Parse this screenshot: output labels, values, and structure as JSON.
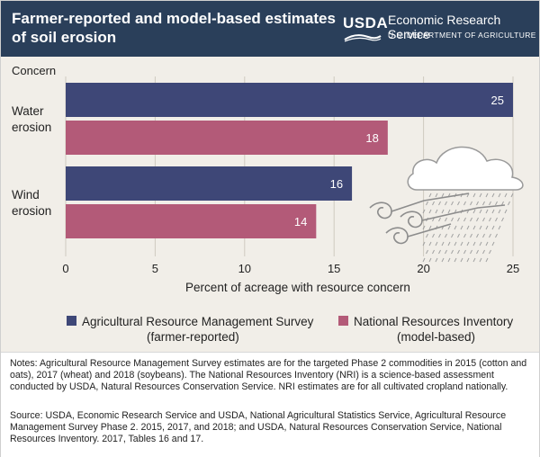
{
  "header": {
    "title": "Farmer-reported and model-based estimates of soil erosion",
    "logo_text": "USDA",
    "agency": "Economic Research Service",
    "department": "U.S. DEPARTMENT OF AGRICULTURE"
  },
  "chart_data": {
    "type": "bar",
    "orientation": "horizontal",
    "y_title": "Concern",
    "categories": [
      "Water erosion",
      "Wind erosion"
    ],
    "series": [
      {
        "name": "Agricultural Resource Management Survey (farmer-reported)",
        "values": [
          25,
          16
        ],
        "color": "#3e4777"
      },
      {
        "name": "National Resources Inventory (model-based)",
        "values": [
          18,
          14
        ],
        "color": "#b35a78"
      }
    ],
    "data_labels": [
      "25",
      "18",
      "16",
      "14"
    ],
    "xlabel": "Percent of acreage with resource concern",
    "xlim": [
      0,
      25
    ],
    "xticks": [
      "0",
      "5",
      "10",
      "15",
      "20",
      "25"
    ],
    "grid": true,
    "legend_position": "bottom"
  },
  "legend": {
    "arms_line1": "Agricultural Resource Management Survey",
    "arms_line2": "(farmer-reported)",
    "nri_line1": "National Resources Inventory",
    "nri_line2": "(model-based)"
  },
  "colors": {
    "header_bg": "#2a3f5a",
    "plot_bg": "#f1eee8",
    "arms": "#3e4777",
    "nri": "#b35a78"
  },
  "notes": {
    "notes_text": "Notes: Agricultural Resource Management Survey estimates are for the targeted Phase 2 commodities in 2015 (cotton and oats), 2017 (wheat) and 2018 (soybeans). The National Resources Inventory (NRI) is a science-based assessment conducted by USDA, Natural Resources Conservation Service. NRI estimates are for all cultivated cropland nationally.",
    "source_text": "Source: USDA, Economic Research Service and USDA, National Agricultural Statistics Service, Agricultural Resource Management Survey Phase 2. 2015, 2017, and 2018; and USDA, Natural Resources Conservation Service, National Resources Inventory. 2017, Tables 16 and 17."
  },
  "icons": [
    "cloud-icon",
    "wind-swirl-icon",
    "rain-icon"
  ]
}
